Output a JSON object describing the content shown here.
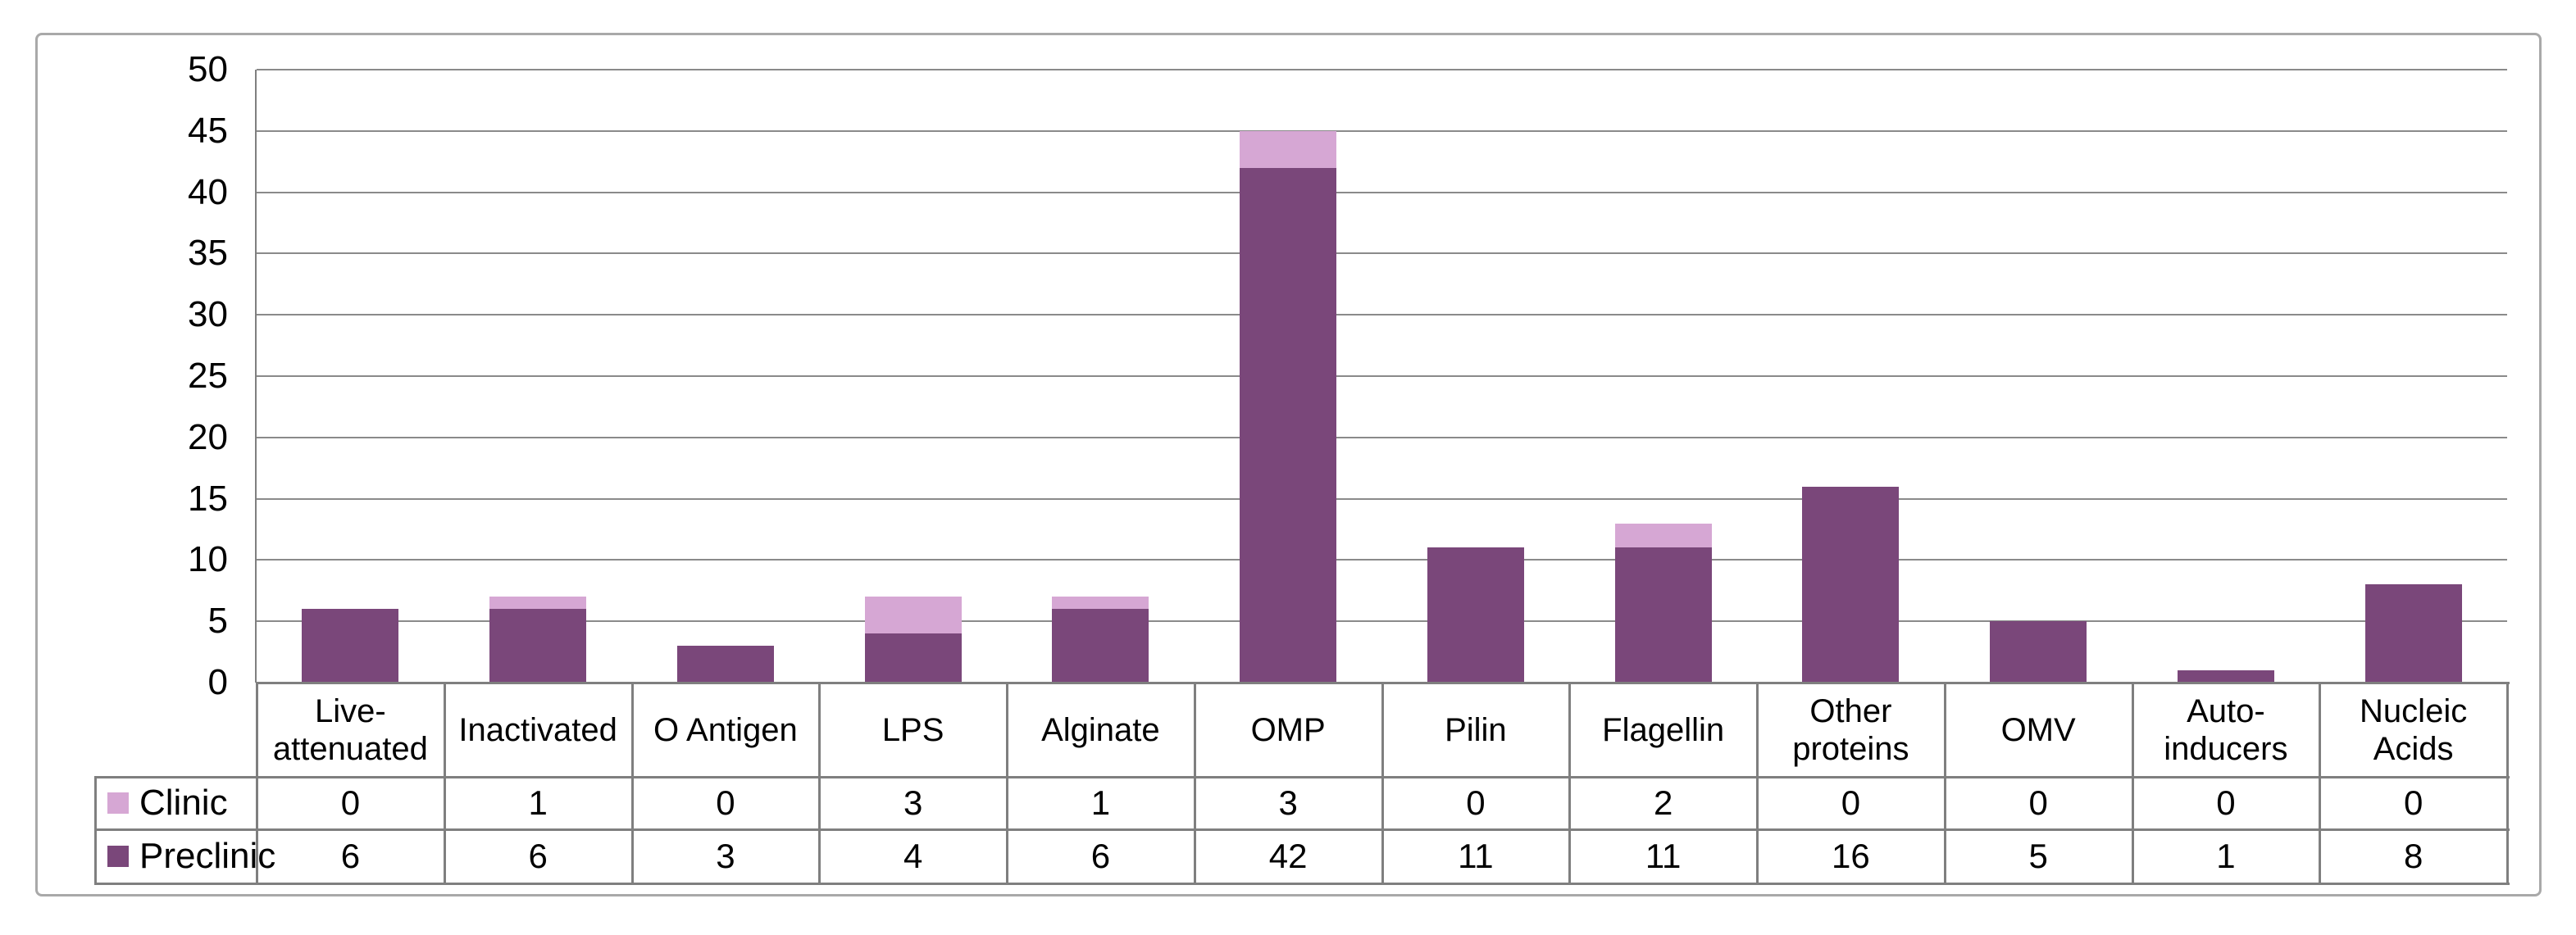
{
  "chart_data": {
    "type": "bar",
    "stacked": true,
    "title": "",
    "xlabel": "",
    "ylabel": "",
    "ylim": [
      0,
      50
    ],
    "ytick_step": 5,
    "grid": true,
    "legend_position": "table-left",
    "categories": [
      "Live-attenuated",
      "Inactivated",
      "O Antigen",
      "LPS",
      "Alginate",
      "OMP",
      "Pilin",
      "Flagellin",
      "Other proteins",
      "OMV",
      "Auto-inducers",
      "Nucleic Acids"
    ],
    "category_labels_display": [
      "Live-\nattenuated",
      "Inactivated",
      "O Antigen",
      "LPS",
      "Alginate",
      "OMP",
      "Pilin",
      "Flagellin",
      "Other\nproteins",
      "OMV",
      "Auto-\ninducers",
      "Nucleic\nAcids"
    ],
    "series": [
      {
        "name": "Clinic",
        "color": "#D6A7D4",
        "values": [
          0,
          1,
          0,
          3,
          1,
          3,
          0,
          2,
          0,
          0,
          0,
          0
        ]
      },
      {
        "name": "Preclinic",
        "color": "#7A477A",
        "values": [
          6,
          6,
          3,
          4,
          6,
          42,
          11,
          11,
          16,
          5,
          1,
          8
        ]
      }
    ],
    "yticks": [
      "0",
      "5",
      "10",
      "15",
      "20",
      "25",
      "30",
      "35",
      "40",
      "45",
      "50"
    ]
  },
  "colors": {
    "gridline": "#8A8A8A",
    "axis": "#7F7F7F",
    "table_border": "#7F7F7F",
    "figure_border": "#A9A9A9",
    "text": "#000000",
    "background": "#FFFFFF"
  }
}
